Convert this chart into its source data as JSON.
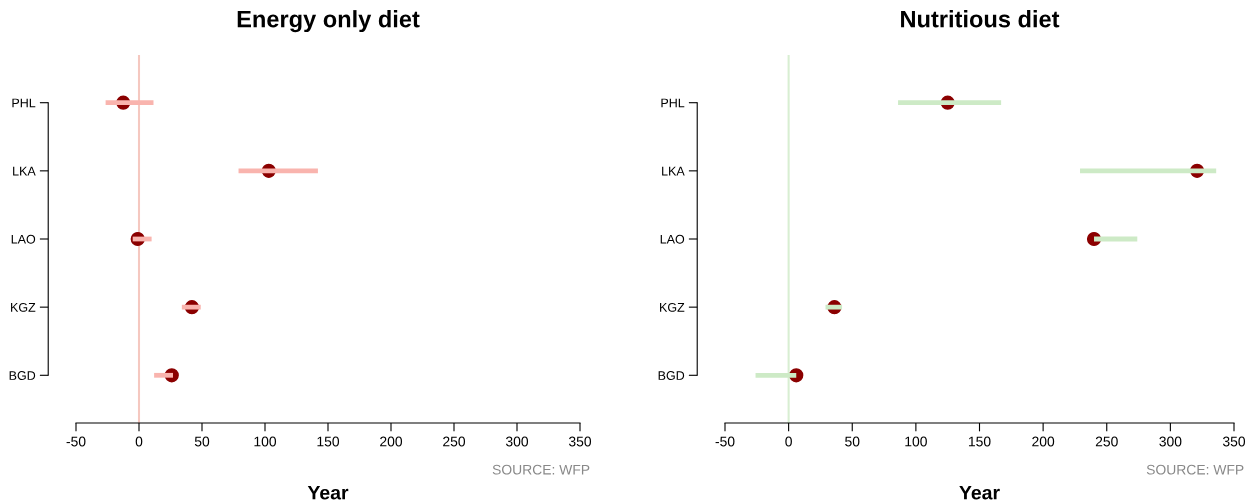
{
  "chart_data": [
    {
      "type": "bar",
      "orientation": "horizontal",
      "title": "Energy only diet",
      "xlabel": "Year",
      "categories": [
        "PHL",
        "LKA",
        "LAO",
        "KGZ",
        "BGD"
      ],
      "series": [
        {
          "color": "#f9b4ae",
          "base": [
            -26.5,
            79,
            -5,
            34,
            12
          ],
          "values": [
            38,
            63,
            15,
            15,
            15
          ]
        },
        {
          "type": "scatter",
          "color": "#8b0000",
          "values": [
            -12.5,
            103,
            -1,
            42,
            26
          ]
        }
      ],
      "xlim": [
        -50,
        350
      ],
      "xticks": [
        -50,
        0,
        50,
        100,
        150,
        200,
        250,
        300,
        350
      ],
      "marker": "circle",
      "ref_lines": [
        {
          "axis": "x",
          "value": 0,
          "color": "#f5c8c0"
        }
      ],
      "annotations": [
        "SOURCE: WFP"
      ]
    },
    {
      "type": "bar",
      "orientation": "horizontal",
      "title": "Nutritious diet",
      "xlabel": "Year",
      "categories": [
        "PHL",
        "LKA",
        "LAO",
        "KGZ",
        "BGD"
      ],
      "series": [
        {
          "color": "#cdeac6",
          "base": [
            86,
            229,
            240,
            29,
            -26
          ],
          "values": [
            81,
            107,
            34,
            13,
            32
          ]
        },
        {
          "type": "scatter",
          "color": "#8b0000",
          "values": [
            125,
            321,
            240,
            36,
            6
          ]
        }
      ],
      "xlim": [
        -50,
        350
      ],
      "xticks": [
        -50,
        0,
        50,
        100,
        150,
        200,
        250,
        300,
        350
      ],
      "marker": "circle",
      "ref_lines": [
        {
          "axis": "x",
          "value": 0,
          "color": "#d8eed2"
        }
      ],
      "annotations": [
        "SOURCE: WFP"
      ]
    }
  ]
}
